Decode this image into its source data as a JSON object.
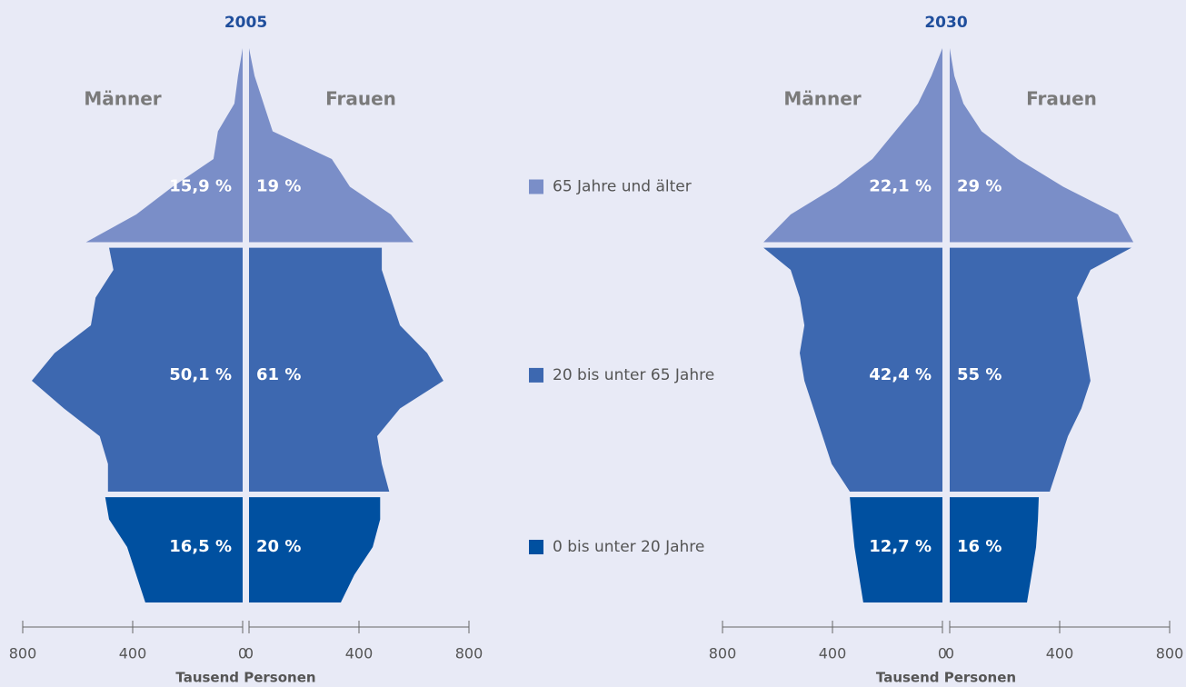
{
  "legend": {
    "groups": [
      {
        "name": "0 bis unter 20 Jahre",
        "color": "#0050a0"
      },
      {
        "name": "20 bis unter 65 Jahre",
        "color": "#3d68b0"
      },
      {
        "name": "65 Jahre und älter",
        "color": "#7a8ec8"
      }
    ]
  },
  "chart_data": [
    {
      "type": "pyramid",
      "title": "2005",
      "xlabel": "Tausend Personen",
      "xlim": [
        0,
        800
      ],
      "xticks": [
        0,
        400,
        800
      ],
      "ages": [
        0,
        5,
        10,
        15,
        19,
        20,
        25,
        30,
        35,
        40,
        45,
        50,
        55,
        60,
        64,
        65,
        70,
        75,
        80,
        85,
        90,
        95,
        100
      ],
      "group_starts": [
        0,
        20,
        65
      ],
      "series": [
        {
          "name": "Männer",
          "values": [
            354,
            387,
            420,
            486,
            500,
            490,
            490,
            520,
            650,
            767,
            684,
            552,
            535,
            470,
            486,
            570,
            387,
            255,
            106,
            90,
            30,
            17,
            0
          ],
          "shares": [
            16.5,
            50.1,
            15.9
          ],
          "share_labels": [
            "16,5 %",
            "50,1 %",
            "15,9 %"
          ]
        },
        {
          "name": "Frauen",
          "values": [
            334,
            383,
            450,
            477,
            477,
            510,
            483,
            466,
            549,
            707,
            648,
            549,
            516,
            483,
            483,
            598,
            516,
            367,
            301,
            86,
            53,
            20,
            0
          ],
          "shares": [
            20,
            61,
            19
          ],
          "share_labels": [
            "20 %",
            "61 %",
            "19 %"
          ]
        }
      ]
    },
    {
      "type": "pyramid",
      "title": "2030",
      "xlabel": "Tausend Personen",
      "xlim": [
        0,
        800
      ],
      "xticks": [
        0,
        400,
        800
      ],
      "ages": [
        0,
        5,
        10,
        15,
        19,
        20,
        25,
        30,
        35,
        40,
        45,
        50,
        55,
        60,
        64,
        65,
        70,
        75,
        80,
        85,
        90,
        95,
        100
      ],
      "group_starts": [
        0,
        20,
        65
      ],
      "series": [
        {
          "name": "Männer",
          "values": [
            288,
            304,
            320,
            330,
            337,
            337,
            403,
            436,
            469,
            502,
            519,
            502,
            519,
            552,
            651,
            651,
            552,
            387,
            255,
            172,
            89,
            40,
            0
          ],
          "shares": [
            12.7,
            42.4,
            22.1
          ],
          "share_labels": [
            "12,7 %",
            "42,4 %",
            "22,1 %"
          ]
        },
        {
          "name": "Frauen",
          "values": [
            281,
            298,
            314,
            321,
            324,
            364,
            397,
            430,
            479,
            512,
            496,
            479,
            463,
            512,
            661,
            668,
            612,
            413,
            248,
            116,
            50,
            17,
            0
          ],
          "shares": [
            16,
            55,
            29
          ],
          "share_labels": [
            "16 %",
            "55 %",
            "29 %"
          ]
        }
      ]
    }
  ]
}
